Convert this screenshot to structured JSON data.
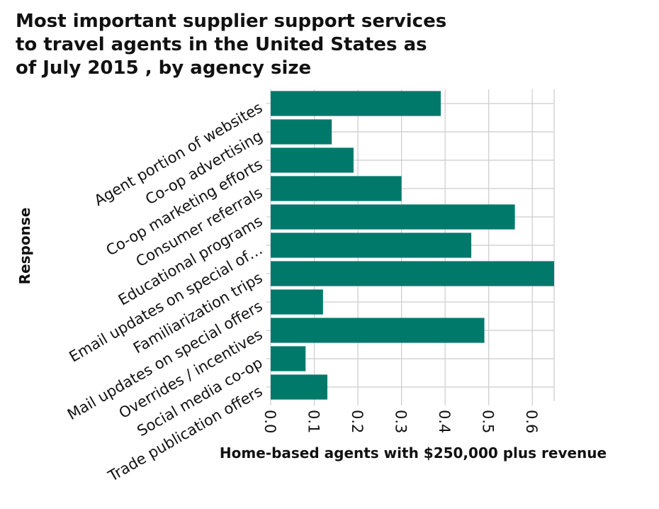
{
  "chart_data": {
    "type": "bar",
    "orientation": "horizontal",
    "title_lines": [
      "Most important supplier support services",
      "to travel agents in the United States as",
      "of July 2015 , by agency size"
    ],
    "xlabel": "Home-based agents with $250,000 plus revenue",
    "ylabel": "Response",
    "categories": [
      "Agent portion of websites",
      "Co-op advertising",
      "Co-op marketing efforts",
      "Consumer referrals",
      "Educational programs",
      "Email updates on special of…",
      "Familiarization trips",
      "Mail updates on special offers",
      "Overrides / incentives",
      "Social media co-op",
      "Trade publication offers"
    ],
    "values": [
      0.39,
      0.14,
      0.19,
      0.3,
      0.56,
      0.46,
      0.65,
      0.12,
      0.49,
      0.08,
      0.13
    ],
    "xlim": [
      0,
      0.65
    ],
    "xticks": [
      "0.0",
      "0.1",
      "0.2",
      "0.3",
      "0.4",
      "0.5",
      "0.6"
    ],
    "grid": true,
    "bar_color": "#00796b",
    "grid_color": "#cccccc"
  }
}
